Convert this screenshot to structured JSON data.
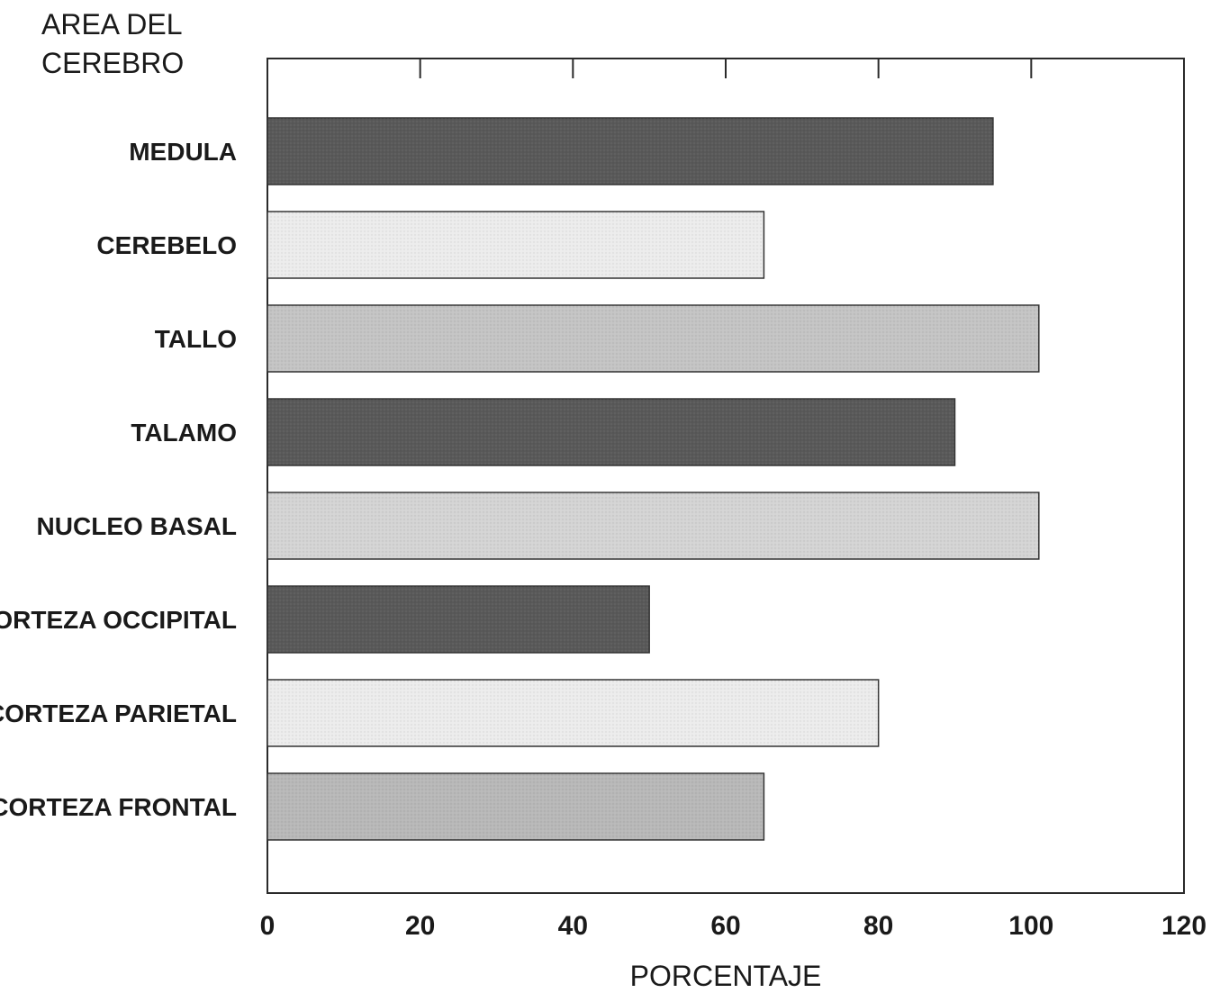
{
  "chart_data": {
    "type": "bar",
    "orientation": "horizontal",
    "ylabel": "AREA DEL\nCEREBRO",
    "xlabel": "PORCENTAJE",
    "xlim": [
      0,
      120
    ],
    "xticks": [
      0,
      20,
      40,
      60,
      80,
      100,
      120
    ],
    "categories": [
      "MEDULA",
      "CEREBELO",
      "TALLO",
      "TALAMO",
      "NUCLEO BASAL",
      "CORTEZA OCCIPITAL",
      "CORTEZA PARIETAL",
      "CORTEZA FRONTAL"
    ],
    "values": [
      95,
      65,
      101,
      90,
      101,
      50,
      80,
      65
    ],
    "colors": [
      "#595959",
      "#ececec",
      "#c4c4c4",
      "#595959",
      "#d4d4d4",
      "#595959",
      "#ececec",
      "#b8b8b8"
    ],
    "grid": false,
    "legend": "none"
  }
}
